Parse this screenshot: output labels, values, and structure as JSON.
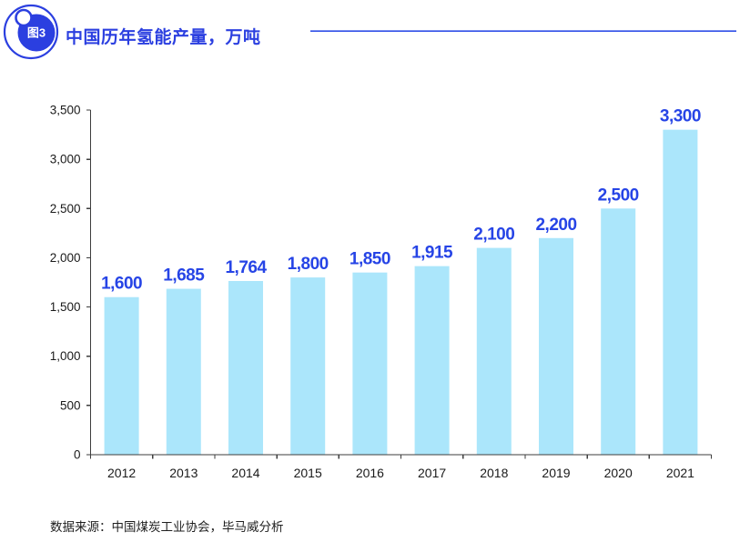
{
  "header": {
    "badge_label": "图3",
    "title": "中国历年氢能产量，万吨"
  },
  "footer": {
    "source": "数据来源：中国煤炭工业协会，毕马威分析"
  },
  "colors": {
    "accent_blue": "#2B3FE0",
    "value_label_blue": "#2644E6",
    "bar_fill": "#ABE6FB",
    "axis": "#3d3d3d",
    "tick_text": "#1a1a1a",
    "badge_fill": "#2B3FE0",
    "badge_text": "#ffffff"
  },
  "chart_data": {
    "type": "bar",
    "title": "中国历年氢能产量，万吨",
    "unit": "万吨",
    "categories": [
      "2012",
      "2013",
      "2014",
      "2015",
      "2016",
      "2017",
      "2018",
      "2019",
      "2020",
      "2021"
    ],
    "values": [
      1600,
      1685,
      1764,
      1800,
      1850,
      1915,
      2100,
      2200,
      2500,
      3300
    ],
    "value_labels": [
      "1,600",
      "1,685",
      "1,764",
      "1,800",
      "1,850",
      "1,915",
      "2,100",
      "2,200",
      "2,500",
      "3,300"
    ],
    "xlabel": "",
    "ylabel": "",
    "ylim": [
      0,
      3500
    ],
    "ytick_step": 500,
    "ytick_labels": [
      "0",
      "500",
      "1,000",
      "1,500",
      "2,000",
      "2,500",
      "3,000",
      "3,500"
    ],
    "grid": false,
    "legend_position": "none",
    "source": "数据来源：中国煤炭工业协会，毕马威分析"
  }
}
